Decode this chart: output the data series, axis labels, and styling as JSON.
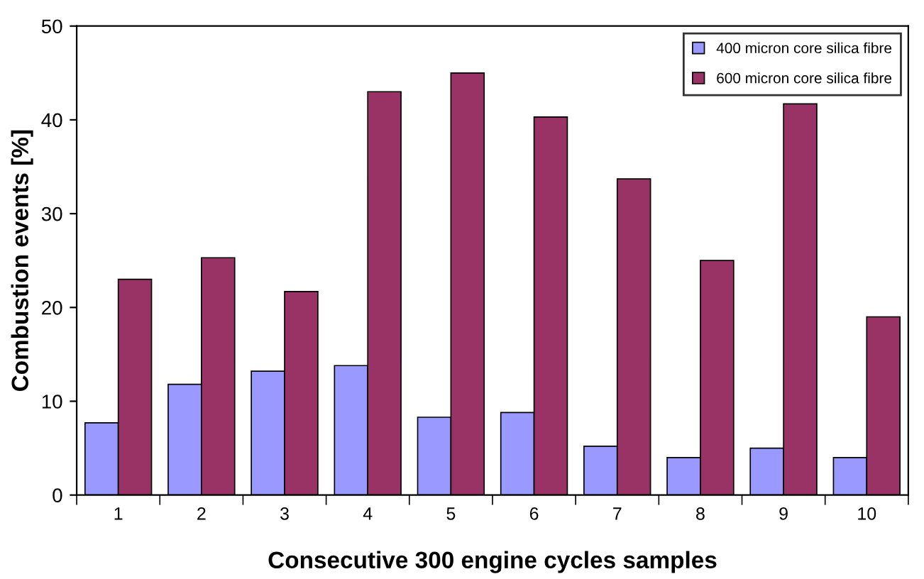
{
  "chart_data": {
    "type": "bar",
    "xlabel": "Consecutive 300 engine cycles samples",
    "ylabel": "Combustion events [%]",
    "categories": [
      "1",
      "2",
      "3",
      "4",
      "5",
      "6",
      "7",
      "8",
      "9",
      "10"
    ],
    "series": [
      {
        "name": "400 micron core silica fibre",
        "color": "#9999ff",
        "values": [
          7.7,
          11.8,
          13.2,
          13.8,
          8.3,
          8.8,
          5.2,
          4.0,
          5.0,
          4.0
        ]
      },
      {
        "name": "600 micron core silica fibre",
        "color": "#993366",
        "values": [
          23.0,
          25.3,
          21.7,
          43.0,
          45.0,
          40.3,
          33.7,
          25.0,
          41.7,
          19.0
        ]
      }
    ],
    "ylim": [
      0,
      50
    ],
    "yticks": [
      0,
      10,
      20,
      30,
      40,
      50
    ],
    "legend": "top right",
    "grid": false
  }
}
